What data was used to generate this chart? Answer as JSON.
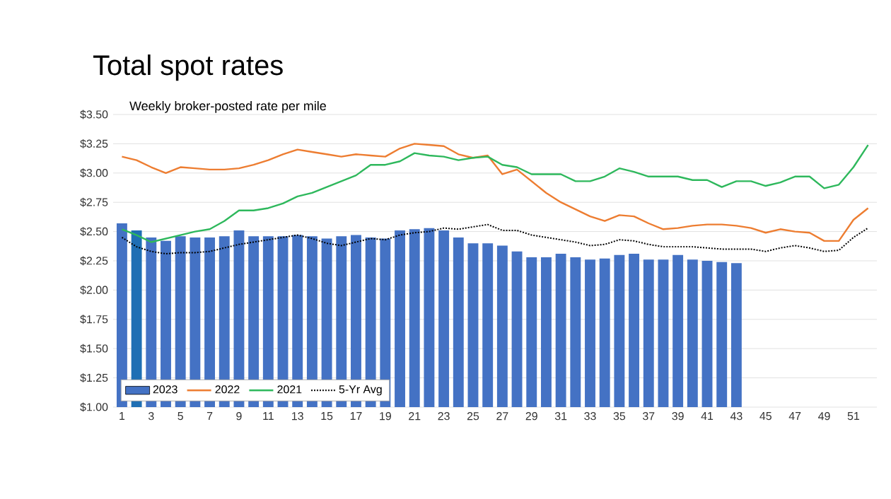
{
  "chart_data": {
    "type": "bar",
    "title": "Total spot rates",
    "subtitle": "Weekly broker-posted rate per mile",
    "categories": [
      "1",
      null,
      "3",
      null,
      "5",
      null,
      "7",
      null,
      "9",
      null,
      "11",
      null,
      "13",
      null,
      "15",
      null,
      "17",
      null,
      "19",
      null,
      "21",
      null,
      "23",
      null,
      "25",
      null,
      "27",
      null,
      "29",
      null,
      "31",
      null,
      "33",
      null,
      "35",
      null,
      "37",
      null,
      "39",
      null,
      "41",
      null,
      "43",
      null,
      "45",
      null,
      "47",
      null,
      "49",
      null,
      "51",
      null
    ],
    "series": [
      {
        "name": "2023",
        "color": "#4472c4",
        "colors": [
          "#4472c4",
          "#1f6fb4",
          "#4472c4",
          "#4472c4",
          "#4472c4",
          "#4472c4",
          "#4472c4",
          "#4472c4",
          "#4472c4",
          "#4472c4",
          "#4472c4",
          "#4472c4",
          "#4472c4",
          "#4472c4",
          "#4472c4",
          "#4472c4",
          "#4472c4",
          "#4472c4",
          "#4472c4",
          "#4472c4",
          "#4472c4",
          "#4472c4",
          "#4472c4",
          "#4472c4",
          "#4472c4",
          "#4472c4",
          "#4472c4",
          "#4472c4",
          "#4472c4",
          "#4472c4",
          "#4472c4",
          "#4472c4",
          "#4472c4",
          "#4472c4",
          "#4472c4",
          "#4472c4",
          "#4472c4",
          "#4472c4",
          "#4472c4",
          "#4472c4",
          "#4472c4",
          "#4472c4",
          "#4472c4",
          "#4472c4",
          "#4472c4",
          "#4472c4",
          "#4472c4",
          "#4472c4",
          "#4472c4",
          "#4472c4",
          "#4472c4",
          "#4472c4"
        ],
        "values": [
          2.57,
          2.51,
          2.45,
          2.42,
          2.46,
          2.45,
          2.45,
          2.46,
          2.51,
          2.46,
          2.46,
          2.46,
          2.47,
          2.46,
          2.44,
          2.46,
          2.47,
          2.45,
          2.44,
          2.51,
          2.52,
          2.53,
          2.51,
          2.45,
          2.4,
          2.4,
          2.38,
          2.33,
          2.28,
          2.28,
          2.31,
          2.28,
          2.26,
          2.27,
          2.3,
          2.31,
          2.26,
          2.26,
          2.3,
          2.26,
          2.25,
          2.24,
          2.23,
          null,
          null,
          null,
          null,
          null,
          null,
          null,
          null,
          null
        ]
      },
      {
        "name": "2022",
        "type": "line",
        "color": "#ed7d31",
        "values": [
          3.14,
          3.11,
          3.05,
          3.0,
          3.05,
          3.04,
          3.03,
          3.03,
          3.04,
          3.07,
          3.11,
          3.16,
          3.2,
          3.18,
          3.16,
          3.14,
          3.16,
          3.15,
          3.14,
          3.21,
          3.25,
          3.24,
          3.23,
          3.16,
          3.13,
          3.15,
          2.99,
          3.03,
          2.93,
          2.83,
          2.75,
          2.69,
          2.63,
          2.59,
          2.64,
          2.63,
          2.57,
          2.52,
          2.53,
          2.55,
          2.56,
          2.56,
          2.55,
          2.53,
          2.49,
          2.52,
          2.5,
          2.49,
          2.42,
          2.42,
          2.6,
          2.7
        ]
      },
      {
        "name": "2021",
        "type": "line",
        "color": "#2eb85c",
        "values": [
          2.52,
          2.47,
          2.41,
          2.44,
          2.47,
          2.5,
          2.52,
          2.59,
          2.68,
          2.68,
          2.7,
          2.74,
          2.8,
          2.83,
          2.88,
          2.93,
          2.98,
          3.07,
          3.07,
          3.1,
          3.17,
          3.15,
          3.14,
          3.11,
          3.13,
          3.14,
          3.07,
          3.05,
          2.99,
          2.99,
          2.99,
          2.93,
          2.93,
          2.97,
          3.04,
          3.01,
          2.97,
          2.97,
          2.97,
          2.94,
          2.94,
          2.88,
          2.93,
          2.93,
          2.89,
          2.92,
          2.97,
          2.97,
          2.87,
          2.9,
          3.05,
          3.24
        ]
      },
      {
        "name": "5-Yr Avg",
        "type": "line",
        "color": "#000000",
        "line_style": "dotted",
        "values": [
          2.45,
          2.37,
          2.33,
          2.31,
          2.32,
          2.32,
          2.33,
          2.36,
          2.39,
          2.41,
          2.43,
          2.45,
          2.47,
          2.44,
          2.4,
          2.38,
          2.41,
          2.44,
          2.43,
          2.47,
          2.49,
          2.5,
          2.53,
          2.52,
          2.54,
          2.56,
          2.51,
          2.51,
          2.47,
          2.45,
          2.43,
          2.41,
          2.38,
          2.39,
          2.43,
          2.42,
          2.39,
          2.37,
          2.37,
          2.37,
          2.36,
          2.35,
          2.35,
          2.35,
          2.33,
          2.36,
          2.38,
          2.36,
          2.33,
          2.34,
          2.45,
          2.53
        ]
      }
    ],
    "ylim": [
      1.0,
      3.5
    ],
    "yticks": [
      {
        "value": 1.0,
        "label": "$1.00"
      },
      {
        "value": 1.25,
        "label": "$1.25"
      },
      {
        "value": 1.5,
        "label": "$1.50"
      },
      {
        "value": 1.75,
        "label": "$1.75"
      },
      {
        "value": 2.0,
        "label": "$2.00"
      },
      {
        "value": 2.25,
        "label": "$2.25"
      },
      {
        "value": 2.5,
        "label": "$2.50"
      },
      {
        "value": 2.75,
        "label": "$2.75"
      },
      {
        "value": 3.0,
        "label": "$3.00"
      },
      {
        "value": 3.25,
        "label": "$3.25"
      },
      {
        "value": 3.5,
        "label": "$3.50"
      }
    ],
    "grid": "y",
    "legend": "bottom left"
  }
}
